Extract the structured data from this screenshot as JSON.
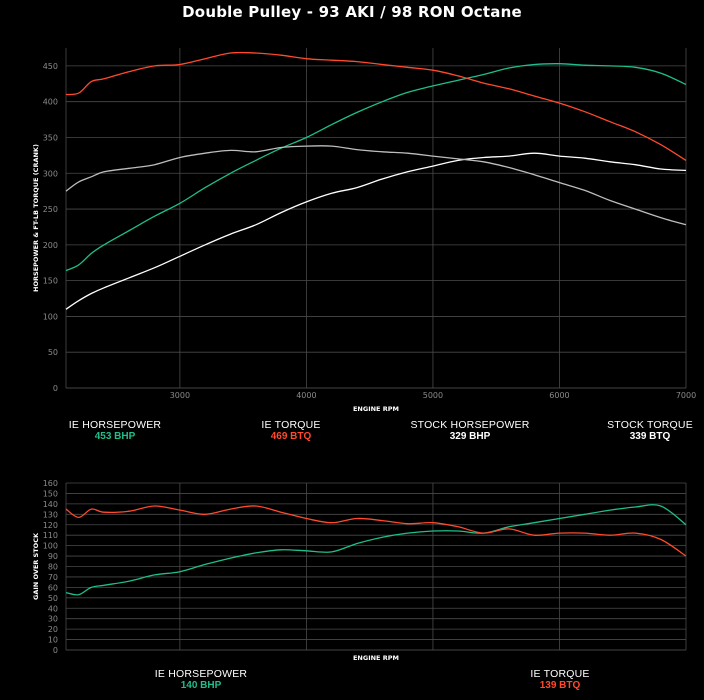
{
  "title": "Double Pulley - 93 AKI / 98 RON Octane",
  "colors": {
    "ie_hp": "#1fbe8c",
    "ie_tq": "#ff4a2c",
    "stock_hp": "#ffffff",
    "stock_tq": "#bdbdbd",
    "grid": "#4a4a4a"
  },
  "top_legend": [
    {
      "name": "IE HORSEPOWER",
      "value": "453 BHP",
      "color": "#1fbe8c"
    },
    {
      "name": "IE TORQUE",
      "value": "469 BTQ",
      "color": "#ff4a2c"
    },
    {
      "name": "STOCK HORSEPOWER",
      "value": "329 BHP",
      "color": "#ffffff"
    },
    {
      "name": "STOCK TORQUE",
      "value": "339 BTQ",
      "color": "#ffffff"
    }
  ],
  "bottom_legend": [
    {
      "name": "IE HORSEPOWER",
      "value": "140 BHP",
      "color": "#1fbe8c"
    },
    {
      "name": "IE TORQUE",
      "value": "139 BTQ",
      "color": "#ff4a2c"
    }
  ],
  "chart_data": [
    {
      "type": "line",
      "title": "Double Pulley - 93 AKI / 98 RON Octane",
      "xlabel": "ENGINE RPM",
      "ylabel": "HORSEPOWER & FT-LB TORQUE (CRANK)",
      "xlim": [
        2100,
        7000
      ],
      "ylim": [
        0,
        475
      ],
      "xticks": [
        3000,
        4000,
        5000,
        6000,
        7000
      ],
      "yticks": [
        0,
        50,
        100,
        150,
        200,
        250,
        300,
        350,
        400,
        450
      ],
      "grid": true,
      "series": [
        {
          "name": "IE HORSEPOWER",
          "color": "#1fbe8c",
          "x": [
            2100,
            2200,
            2300,
            2400,
            2600,
            2800,
            3000,
            3200,
            3400,
            3600,
            3800,
            4000,
            4200,
            4400,
            4600,
            4800,
            5000,
            5200,
            5400,
            5600,
            5800,
            6000,
            6200,
            6400,
            6600,
            6800,
            7000
          ],
          "y": [
            164,
            172,
            188,
            200,
            220,
            240,
            258,
            280,
            300,
            318,
            335,
            350,
            368,
            385,
            400,
            413,
            422,
            430,
            438,
            447,
            452,
            453,
            451,
            450,
            448,
            440,
            424
          ]
        },
        {
          "name": "IE TORQUE",
          "color": "#ff4a2c",
          "x": [
            2100,
            2200,
            2300,
            2400,
            2600,
            2800,
            3000,
            3200,
            3400,
            3600,
            3800,
            4000,
            4200,
            4400,
            4600,
            4800,
            5000,
            5200,
            5400,
            5600,
            5800,
            6000,
            6200,
            6400,
            6600,
            6800,
            7000
          ],
          "y": [
            410,
            412,
            428,
            432,
            442,
            450,
            452,
            460,
            468,
            468,
            465,
            460,
            458,
            456,
            452,
            448,
            444,
            436,
            426,
            418,
            408,
            398,
            386,
            372,
            358,
            340,
            318
          ]
        },
        {
          "name": "STOCK HORSEPOWER",
          "color": "#ffffff",
          "x": [
            2100,
            2200,
            2300,
            2400,
            2600,
            2800,
            3000,
            3200,
            3400,
            3600,
            3800,
            4000,
            4200,
            4400,
            4600,
            4800,
            5000,
            5200,
            5400,
            5600,
            5800,
            6000,
            6200,
            6400,
            6600,
            6800,
            7000
          ],
          "y": [
            110,
            122,
            132,
            140,
            154,
            168,
            184,
            200,
            215,
            228,
            245,
            260,
            272,
            280,
            292,
            302,
            310,
            318,
            322,
            324,
            328,
            324,
            321,
            316,
            312,
            306,
            304
          ]
        },
        {
          "name": "STOCK TORQUE",
          "color": "#bdbdbd",
          "x": [
            2100,
            2200,
            2300,
            2400,
            2600,
            2800,
            3000,
            3200,
            3400,
            3600,
            3800,
            4000,
            4200,
            4400,
            4600,
            4800,
            5000,
            5200,
            5400,
            5600,
            5800,
            6000,
            6200,
            6400,
            6600,
            6800,
            7000
          ],
          "y": [
            275,
            288,
            295,
            302,
            307,
            312,
            322,
            328,
            332,
            330,
            336,
            338,
            338,
            333,
            330,
            328,
            324,
            320,
            316,
            308,
            298,
            287,
            276,
            262,
            250,
            238,
            228
          ]
        }
      ]
    },
    {
      "type": "line",
      "xlabel": "ENGINE RPM",
      "ylabel": "GAIN OVER STOCK",
      "xlim": [
        2100,
        7000
      ],
      "ylim": [
        0,
        160
      ],
      "xticks": [
        3000,
        4000,
        5000,
        6000,
        7000
      ],
      "yticks": [
        0,
        10,
        20,
        30,
        40,
        50,
        60,
        70,
        80,
        90,
        100,
        110,
        120,
        130,
        140,
        150,
        160
      ],
      "grid": true,
      "series": [
        {
          "name": "IE HORSEPOWER",
          "color": "#1fbe8c",
          "x": [
            2100,
            2200,
            2300,
            2400,
            2600,
            2800,
            3000,
            3200,
            3400,
            3600,
            3800,
            4000,
            4200,
            4400,
            4600,
            4800,
            5000,
            5200,
            5400,
            5600,
            5800,
            6000,
            6200,
            6400,
            6600,
            6800,
            7000
          ],
          "y": [
            55,
            53,
            60,
            62,
            66,
            72,
            75,
            82,
            88,
            93,
            96,
            95,
            94,
            102,
            108,
            112,
            114,
            114,
            112,
            118,
            122,
            126,
            130,
            134,
            137,
            138,
            120
          ]
        },
        {
          "name": "IE TORQUE",
          "color": "#ff4a2c",
          "x": [
            2100,
            2200,
            2300,
            2400,
            2600,
            2800,
            3000,
            3200,
            3400,
            3600,
            3800,
            4000,
            4200,
            4400,
            4600,
            4800,
            5000,
            5200,
            5400,
            5600,
            5800,
            6000,
            6200,
            6400,
            6600,
            6800,
            7000
          ],
          "y": [
            135,
            127,
            135,
            132,
            133,
            138,
            134,
            130,
            135,
            138,
            132,
            126,
            122,
            126,
            124,
            121,
            122,
            118,
            112,
            116,
            110,
            112,
            112,
            110,
            112,
            106,
            90
          ]
        }
      ]
    }
  ]
}
